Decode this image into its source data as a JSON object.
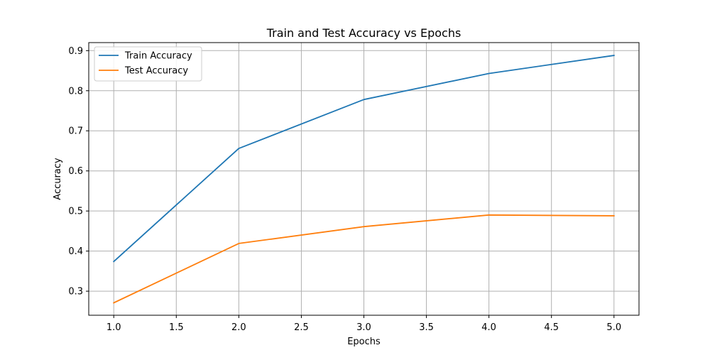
{
  "chart_data": {
    "type": "line",
    "title": "Train and Test Accuracy vs Epochs",
    "xlabel": "Epochs",
    "ylabel": "Accuracy",
    "x": [
      1,
      2,
      3,
      4,
      5
    ],
    "xlim": [
      0.8,
      5.2
    ],
    "ylim": [
      0.24,
      0.92
    ],
    "xticks": [
      1.0,
      1.5,
      2.0,
      2.5,
      3.0,
      3.5,
      4.0,
      4.5,
      5.0
    ],
    "xtick_labels": [
      "1.0",
      "1.5",
      "2.0",
      "2.5",
      "3.0",
      "3.5",
      "4.0",
      "4.5",
      "5.0"
    ],
    "yticks": [
      0.3,
      0.4,
      0.5,
      0.6,
      0.7,
      0.8,
      0.9
    ],
    "ytick_labels": [
      "0.3",
      "0.4",
      "0.5",
      "0.6",
      "0.7",
      "0.8",
      "0.9"
    ],
    "grid": true,
    "legend_position": "top-left",
    "series": [
      {
        "name": "Train Accuracy",
        "color": "#1f77b4",
        "values": [
          0.374,
          0.656,
          0.778,
          0.843,
          0.888
        ]
      },
      {
        "name": "Test Accuracy",
        "color": "#ff7f0e",
        "values": [
          0.271,
          0.419,
          0.461,
          0.49,
          0.488
        ]
      }
    ]
  }
}
